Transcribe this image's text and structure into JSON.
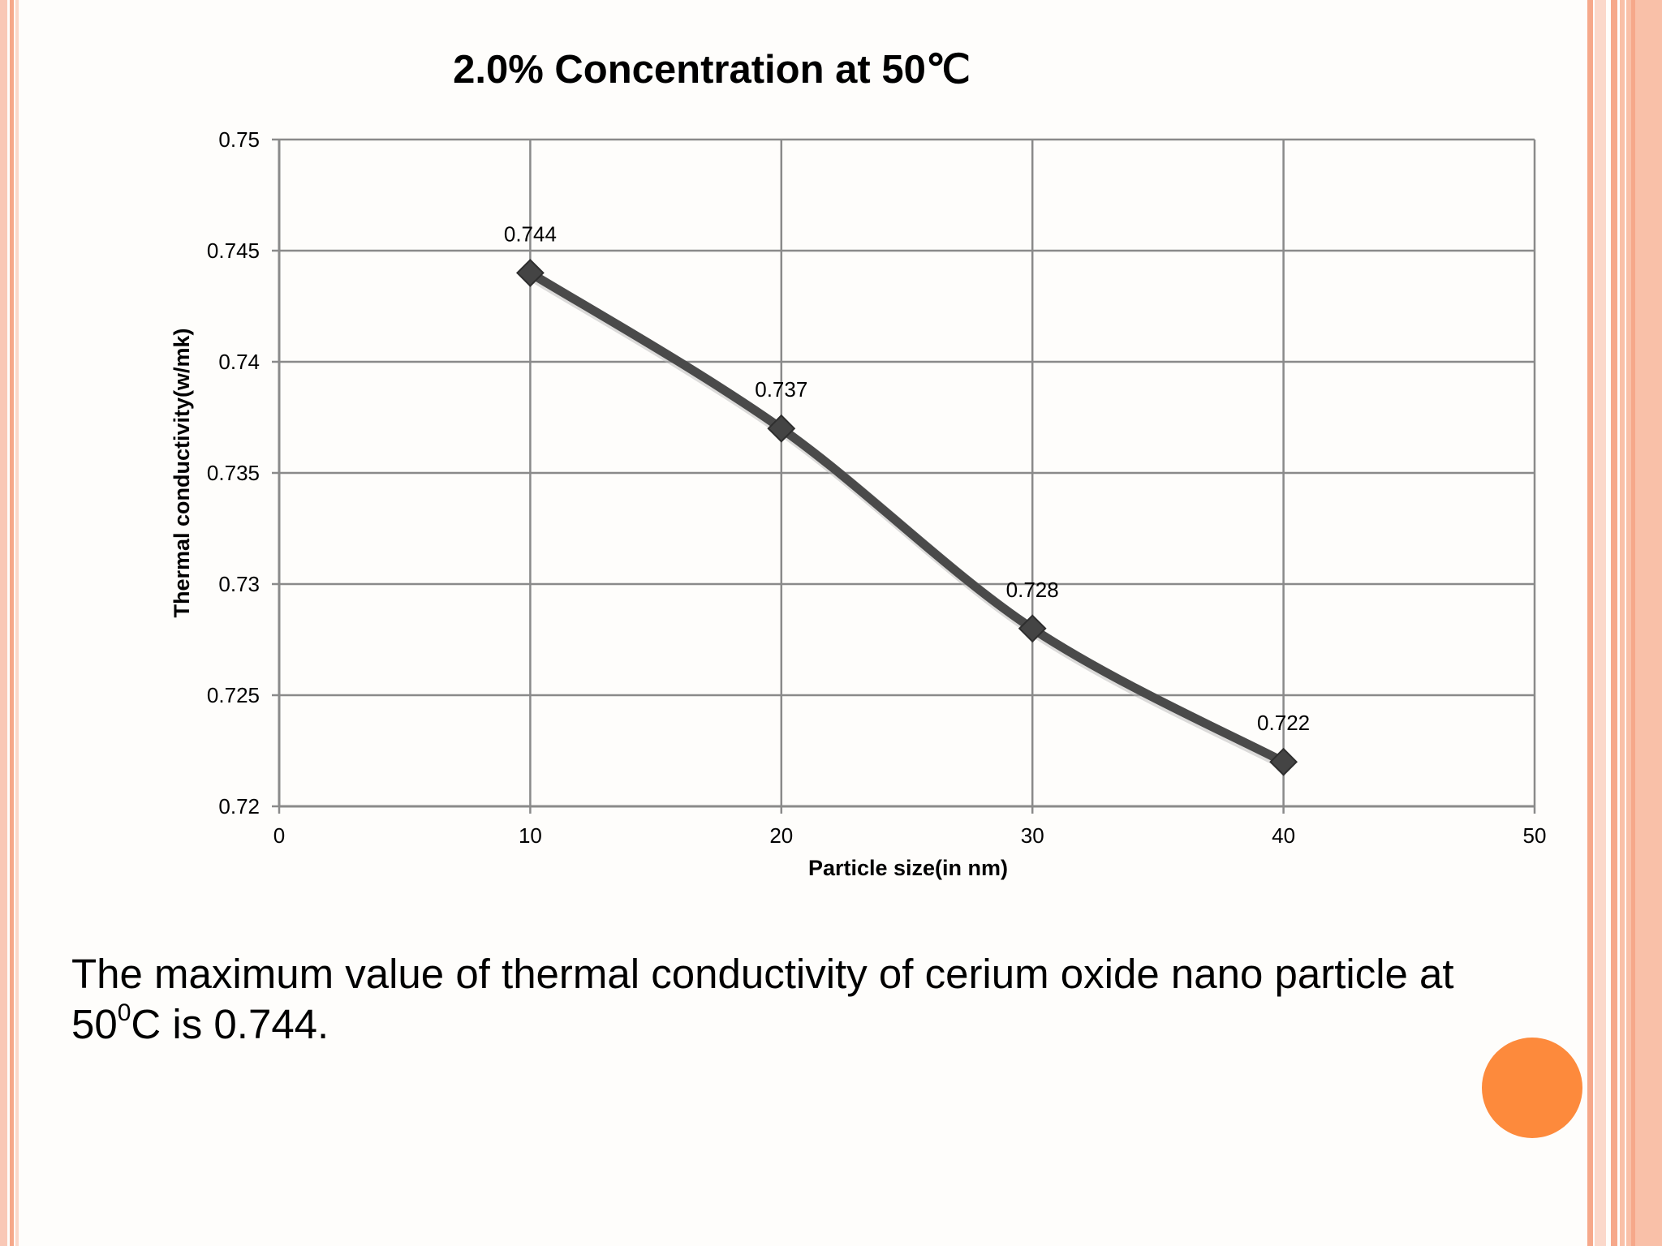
{
  "slide": {
    "caption_main": "The maximum value of thermal conductivity of cerium oxide nano particle at 50",
    "caption_sup": "0",
    "caption_tail": "C is 0.744.",
    "accent_color": "#fd8a3c",
    "border_color": "#f8b9a0"
  },
  "chart_data": {
    "type": "line",
    "title": "2.0% Concentration at 50℃",
    "xlabel": "Particle size(in nm)",
    "ylabel": "Thermal conductivity(w/mk)",
    "xlim": [
      0,
      50
    ],
    "ylim": [
      0.72,
      0.75
    ],
    "x_ticks": [
      "0",
      "10",
      "20",
      "30",
      "40",
      "50"
    ],
    "y_ticks": [
      "0.72",
      "0.725",
      "0.73",
      "0.735",
      "0.74",
      "0.745",
      "0.75"
    ],
    "grid": true,
    "smooth": true,
    "line_color": "#4a4a4a",
    "x": [
      10,
      20,
      30,
      40
    ],
    "y": [
      0.744,
      0.737,
      0.728,
      0.722
    ],
    "data_labels": [
      "0.744",
      "0.737",
      "0.728",
      "0.722"
    ]
  }
}
